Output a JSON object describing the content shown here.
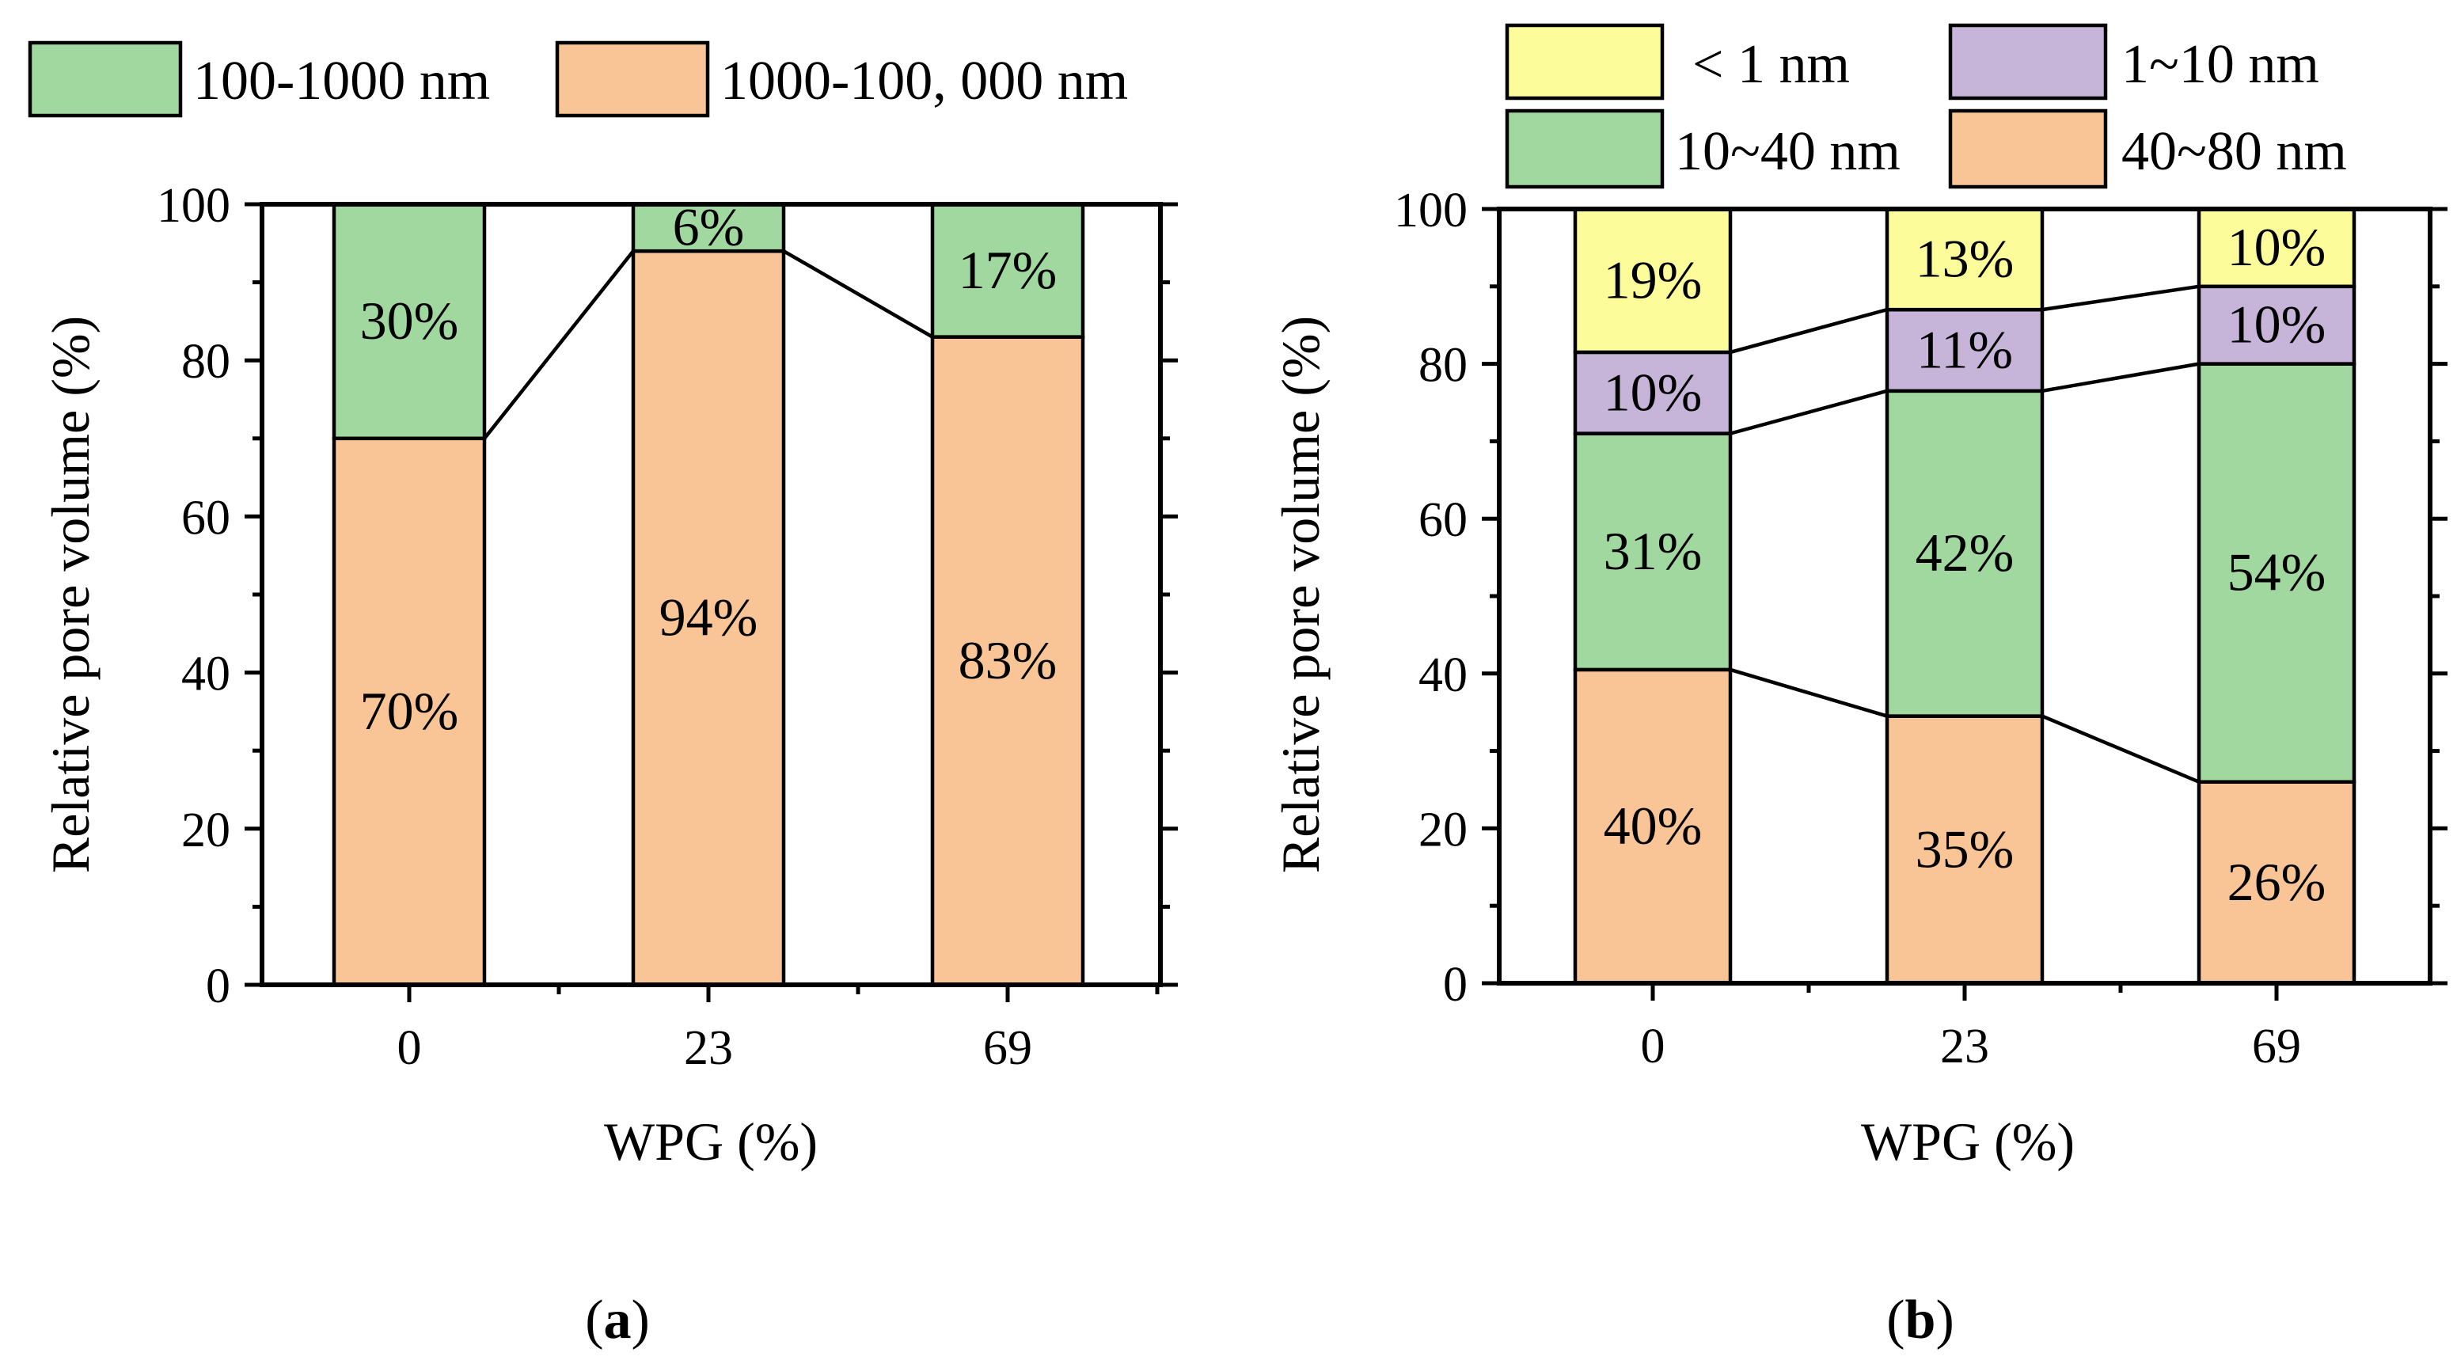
{
  "colors": {
    "green": "#a0d8a0",
    "orange": "#f9c596",
    "yellow": "#fcfc9a",
    "purple": "#c6b5d8"
  },
  "chart_data": [
    {
      "panel": "a",
      "panel_label": "a",
      "type": "bar",
      "stacked": true,
      "xlabel": "WPG (%)",
      "ylabel": "Relative pore volume (%)",
      "ylim": [
        0,
        100
      ],
      "yticks": [
        "0",
        "20",
        "40",
        "60",
        "80",
        "100"
      ],
      "categories": [
        "0",
        "23",
        "69"
      ],
      "series": [
        {
          "name": "1000-100, 000 nm",
          "color": "orange",
          "values": [
            70,
            94,
            83
          ],
          "labels": [
            "70%",
            "94%",
            "83%"
          ]
        },
        {
          "name": "100-1000 nm",
          "color": "green",
          "values": [
            30,
            6,
            17
          ],
          "labels": [
            "30%",
            "6%",
            "17%"
          ]
        }
      ],
      "legend": [
        {
          "label": "100-1000 nm",
          "color": "green"
        },
        {
          "label": "1000-100, 000 nm",
          "color": "orange"
        }
      ]
    },
    {
      "panel": "b",
      "panel_label": "b",
      "type": "bar",
      "stacked": true,
      "xlabel": "WPG (%)",
      "ylabel": "Relative pore volume  (%)",
      "ylim": [
        0,
        100
      ],
      "yticks": [
        "0",
        "20",
        "40",
        "60",
        "80",
        "100"
      ],
      "categories": [
        "0",
        "23",
        "69"
      ],
      "series": [
        {
          "name": "40~80 nm",
          "color": "orange",
          "values": [
            40.5,
            34.5,
            26
          ],
          "labels": [
            "40%",
            "35%",
            "26%"
          ]
        },
        {
          "name": "10~40 nm",
          "color": "green",
          "values": [
            30.5,
            42,
            54
          ],
          "labels": [
            "31%",
            "42%",
            "54%"
          ]
        },
        {
          "name": "1~10 nm",
          "color": "purple",
          "values": [
            10.5,
            10.5,
            10
          ],
          "labels": [
            "10%",
            "11%",
            "10%"
          ]
        },
        {
          "name": "< 1 nm",
          "color": "yellow",
          "values": [
            18.5,
            13,
            10
          ],
          "labels": [
            "19%",
            "13%",
            "10%"
          ]
        }
      ],
      "legend": [
        {
          "label": "< 1 nm",
          "color": "yellow"
        },
        {
          "label": "1~10 nm",
          "color": "purple"
        },
        {
          "label": "10~40 nm",
          "color": "green"
        },
        {
          "label": "40~80 nm",
          "color": "orange"
        }
      ]
    }
  ]
}
